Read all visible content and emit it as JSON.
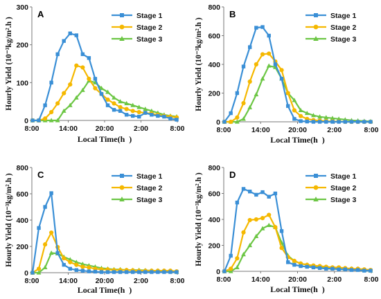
{
  "chart_data": [
    {
      "type": "line",
      "panel": "A",
      "xlabel": "Local Time(h  )",
      "ylabel": "Hourly Yield (10⁻³kg/m².h )",
      "ylim": [
        0,
        300
      ],
      "yticks": [
        "0",
        "100",
        "200",
        "300"
      ],
      "xticks": [
        "8:00",
        "14:00",
        "20:00",
        "2:00",
        "8:00"
      ],
      "legend": "top-right",
      "grid": false,
      "series": [
        {
          "name": "Stage 1",
          "color": "#3a8fd6",
          "marker": "square",
          "values": [
            0,
            0,
            40,
            100,
            175,
            210,
            230,
            225,
            175,
            165,
            110,
            70,
            40,
            28,
            25,
            15,
            12,
            10,
            20,
            15,
            12,
            10,
            5,
            2
          ]
        },
        {
          "name": "Stage 2",
          "color": "#f5b800",
          "marker": "circle",
          "values": [
            0,
            0,
            5,
            22,
            45,
            72,
            95,
            145,
            140,
            110,
            85,
            70,
            55,
            45,
            35,
            30,
            25,
            22,
            20,
            18,
            15,
            12,
            10,
            8
          ]
        },
        {
          "name": "Stage 3",
          "color": "#6cc644",
          "marker": "triangle",
          "values": [
            0,
            0,
            0,
            0,
            0,
            25,
            40,
            60,
            80,
            105,
            100,
            85,
            75,
            60,
            50,
            45,
            40,
            35,
            30,
            25,
            20,
            15,
            12,
            10
          ]
        }
      ]
    },
    {
      "type": "line",
      "panel": "B",
      "xlabel": "Local Time(h  )",
      "ylabel": "Hourly Yield (10⁻³kg/m².h )",
      "ylim": [
        0,
        800
      ],
      "yticks": [
        "0",
        "200",
        "400",
        "600",
        "800"
      ],
      "xticks": [
        "8:00",
        "14:00",
        "20:00",
        "2:00",
        "8:00"
      ],
      "legend": "top-right",
      "grid": false,
      "series": [
        {
          "name": "Stage 1",
          "color": "#3a8fd6",
          "marker": "square",
          "values": [
            0,
            60,
            200,
            385,
            520,
            655,
            660,
            600,
            400,
            300,
            110,
            20,
            5,
            2,
            0,
            0,
            0,
            0,
            0,
            0,
            0,
            0,
            0,
            0
          ]
        },
        {
          "name": "Stage 2",
          "color": "#f5b800",
          "marker": "circle",
          "values": [
            0,
            0,
            30,
            130,
            280,
            400,
            470,
            475,
            420,
            360,
            200,
            80,
            40,
            20,
            12,
            8,
            5,
            3,
            2,
            0,
            0,
            0,
            0,
            0
          ]
        },
        {
          "name": "Stage 3",
          "color": "#6cc644",
          "marker": "triangle",
          "values": [
            0,
            0,
            0,
            20,
            100,
            190,
            300,
            390,
            380,
            300,
            200,
            150,
            80,
            60,
            45,
            35,
            30,
            25,
            20,
            15,
            10,
            8,
            5,
            3
          ]
        }
      ]
    },
    {
      "type": "line",
      "panel": "C",
      "xlabel": "Local Time(h  )",
      "ylabel": "Hourly Yield (10⁻³kg/m².h )",
      "ylim": [
        0,
        800
      ],
      "yticks": [
        "0",
        "200",
        "400",
        "600",
        "800"
      ],
      "xticks": [
        "8:00",
        "14:00",
        "20:00",
        "2:00",
        "8:00"
      ],
      "legend": "top-right",
      "grid": false,
      "series": [
        {
          "name": "Stage 1",
          "color": "#3a8fd6",
          "marker": "square",
          "values": [
            0,
            340,
            500,
            605,
            150,
            60,
            30,
            20,
            15,
            10,
            8,
            5,
            5,
            5,
            5,
            5,
            5,
            5,
            5,
            5,
            5,
            5,
            5,
            5
          ]
        },
        {
          "name": "Stage 2",
          "color": "#f5b800",
          "marker": "circle",
          "values": [
            0,
            30,
            215,
            305,
            195,
            110,
            80,
            60,
            45,
            40,
            30,
            25,
            25,
            20,
            20,
            20,
            18,
            15,
            15,
            15,
            15,
            15,
            15,
            10
          ]
        },
        {
          "name": "Stage 3",
          "color": "#6cc644",
          "marker": "triangle",
          "values": [
            0,
            0,
            40,
            150,
            145,
            120,
            100,
            80,
            65,
            55,
            45,
            35,
            30,
            25,
            25,
            20,
            20,
            20,
            18,
            15,
            15,
            12,
            10,
            5
          ]
        }
      ]
    },
    {
      "type": "line",
      "panel": "D",
      "xlabel": "Local Time(h  )",
      "ylabel": "Hourly Yield (10⁻³kg/m².h )",
      "ylim": [
        0,
        800
      ],
      "yticks": [
        "0",
        "200",
        "400",
        "600",
        "800"
      ],
      "xticks": [
        "8:00",
        "14:00",
        "20:00",
        "2:00",
        "8:00"
      ],
      "legend": "top-right",
      "grid": false,
      "series": [
        {
          "name": "Stage 1",
          "color": "#3a8fd6",
          "marker": "square",
          "values": [
            0,
            120,
            530,
            635,
            615,
            590,
            610,
            575,
            600,
            310,
            70,
            50,
            40,
            35,
            30,
            25,
            20,
            20,
            15,
            15,
            10,
            10,
            5,
            5
          ]
        },
        {
          "name": "Stage 2",
          "color": "#f5b800",
          "marker": "circle",
          "values": [
            0,
            20,
            100,
            300,
            395,
            400,
            410,
            435,
            340,
            180,
            110,
            80,
            60,
            50,
            45,
            40,
            35,
            30,
            30,
            25,
            20,
            20,
            15,
            10
          ]
        },
        {
          "name": "Stage 3",
          "color": "#6cc644",
          "marker": "triangle",
          "values": [
            0,
            0,
            30,
            130,
            200,
            270,
            330,
            355,
            340,
            220,
            120,
            80,
            60,
            50,
            40,
            35,
            30,
            25,
            25,
            20,
            20,
            15,
            10,
            5
          ]
        }
      ]
    }
  ]
}
